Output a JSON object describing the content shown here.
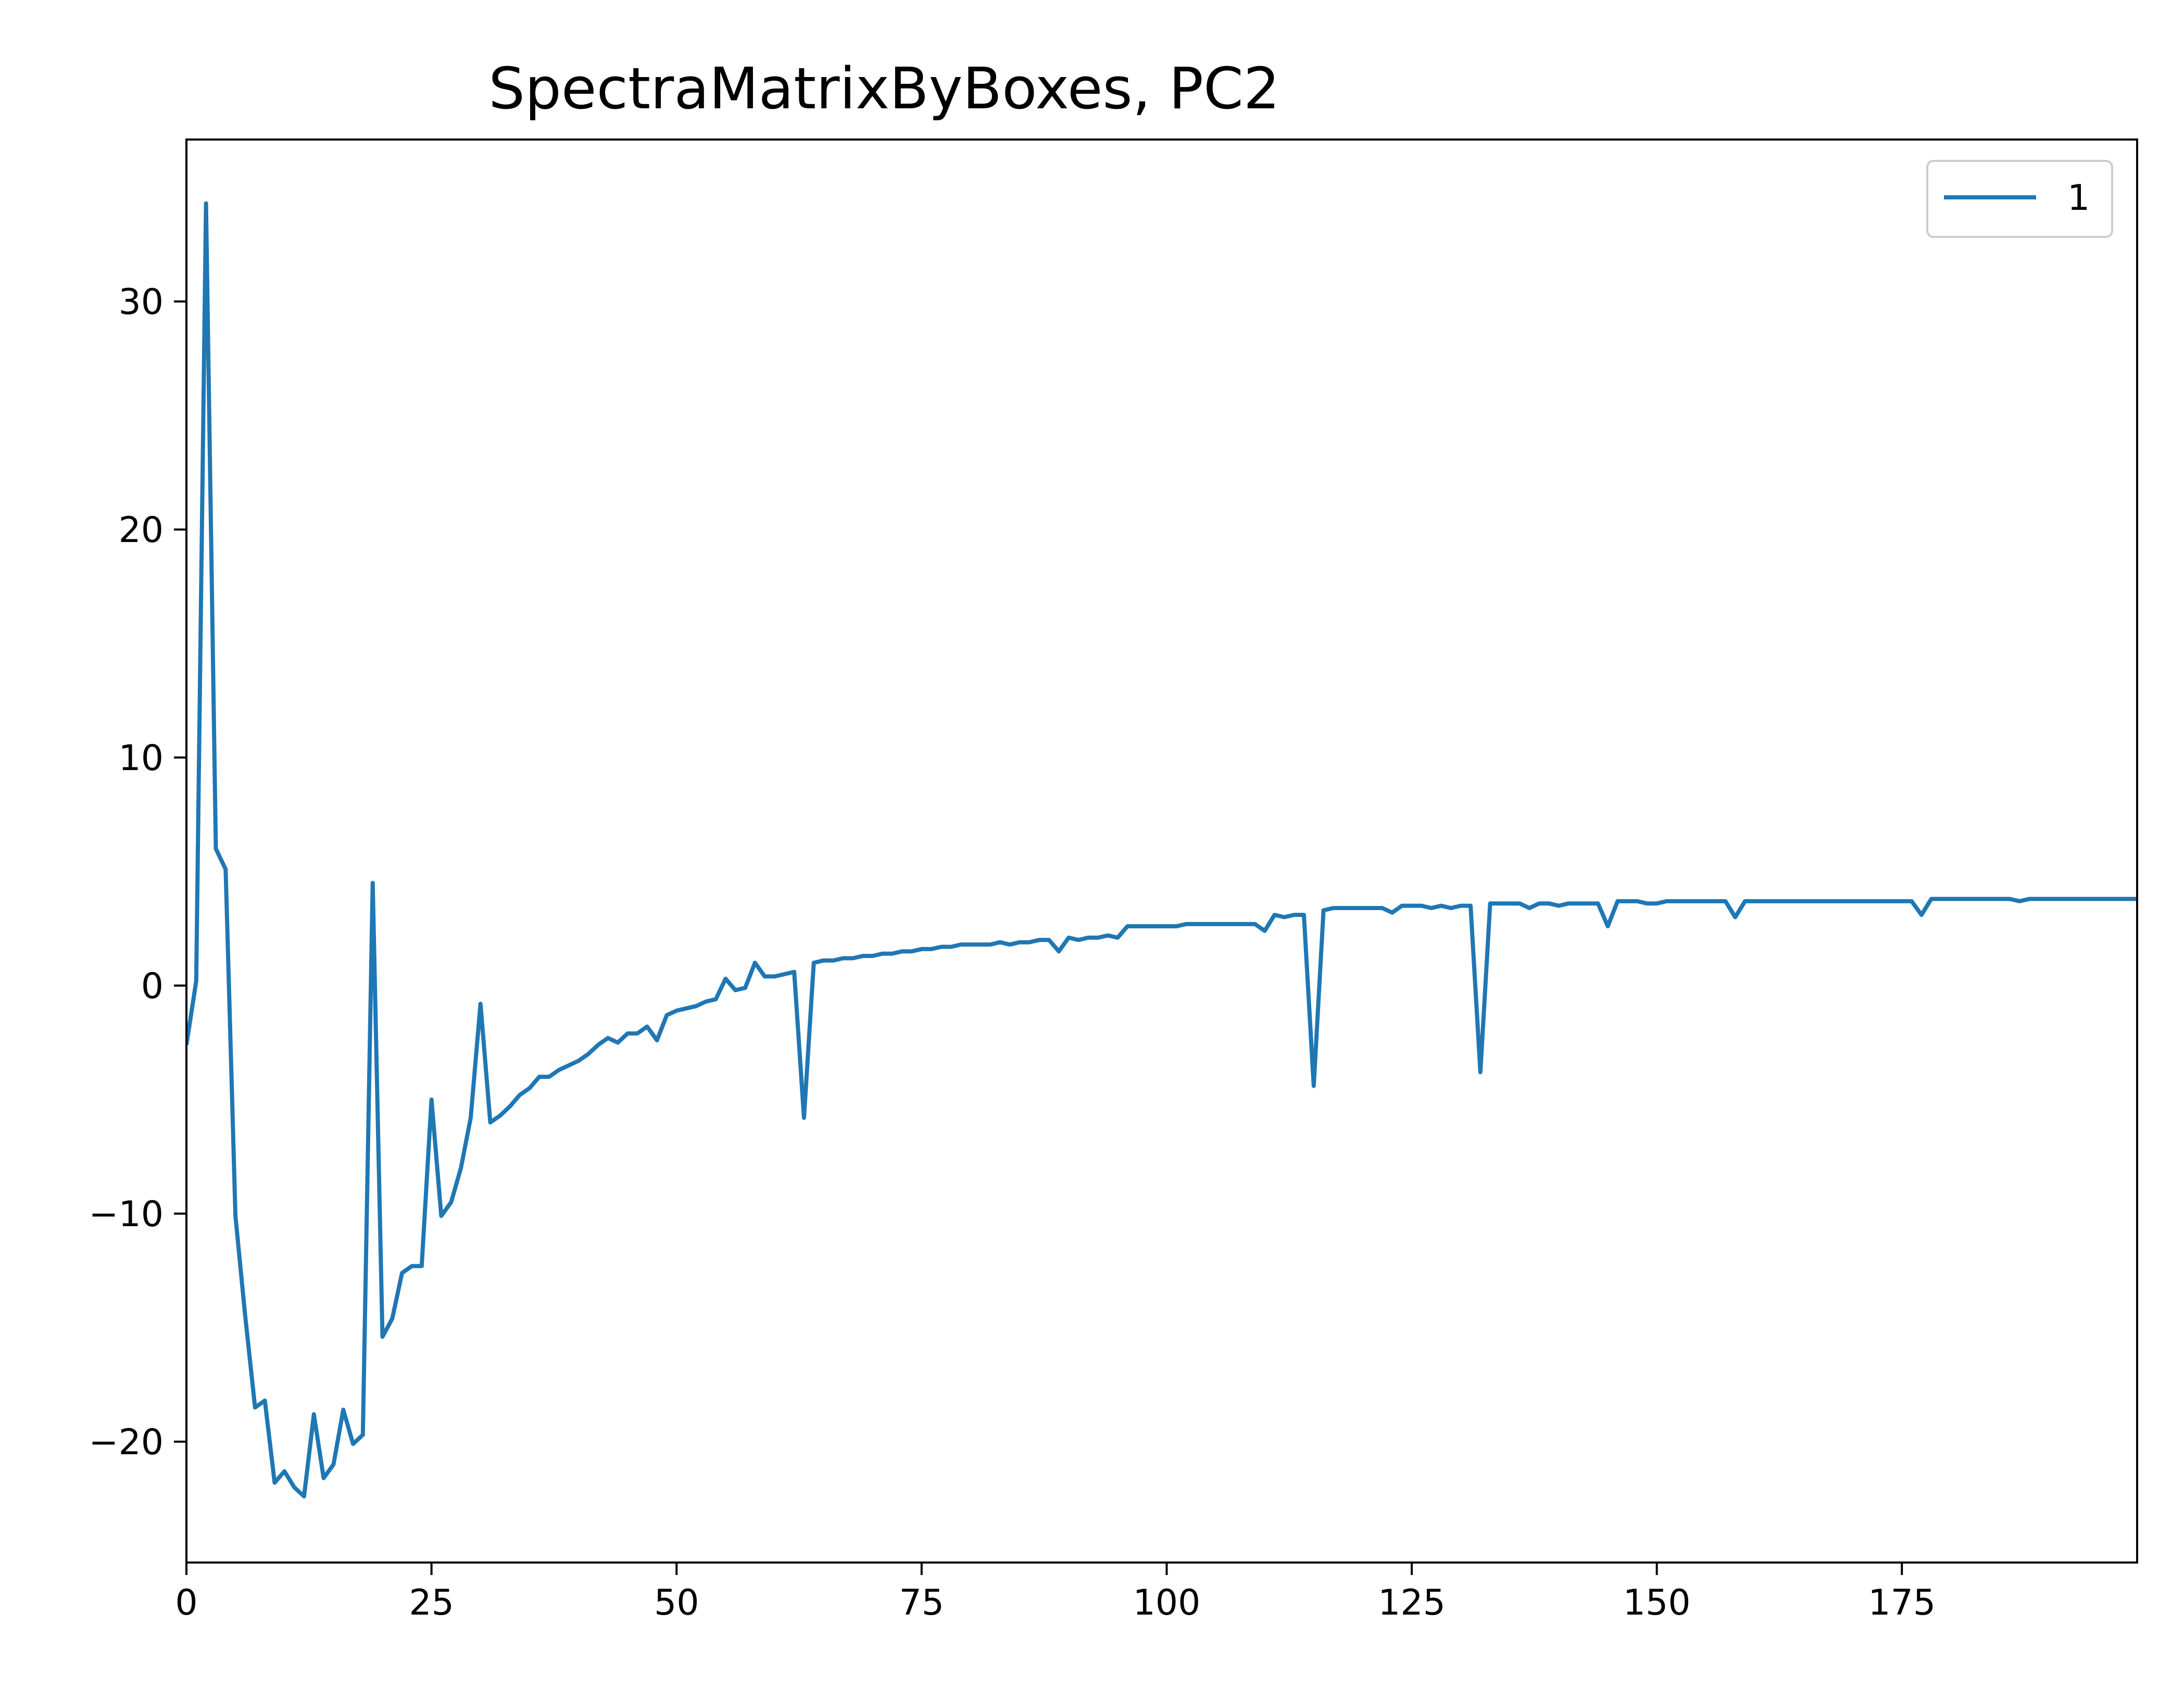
{
  "chart_data": {
    "type": "line",
    "title": "SpectraMatrixByBoxes, PC2",
    "xlabel": "",
    "ylabel": "",
    "xlim": [
      0,
      199
    ],
    "ylim": [
      -25.3,
      37.1
    ],
    "x_ticks": [
      0,
      25,
      50,
      75,
      100,
      125,
      150,
      175
    ],
    "x_tick_labels": [
      "0",
      "25",
      "50",
      "75",
      "100",
      "125",
      "150",
      "175"
    ],
    "y_ticks": [
      -20,
      -10,
      0,
      10,
      20,
      30
    ],
    "y_tick_labels": [
      "−20",
      "−10",
      "0",
      "10",
      "20",
      "30"
    ],
    "grid": false,
    "legend": {
      "position": "top-right",
      "entries": [
        "1"
      ]
    },
    "series": [
      {
        "name": "1",
        "color": "#1f77b4",
        "x_start": 0,
        "x_step": 1,
        "values": [
          -2.6,
          0.2,
          34.3,
          6.0,
          5.1,
          -10.1,
          -14.5,
          -18.5,
          -18.2,
          -21.8,
          -21.3,
          -22.0,
          -22.4,
          -18.8,
          -21.6,
          -21.0,
          -18.6,
          -20.1,
          -19.7,
          4.5,
          -15.4,
          -14.6,
          -12.6,
          -12.3,
          -12.3,
          -5.0,
          -10.1,
          -9.5,
          -8.0,
          -5.8,
          -0.8,
          -6.0,
          -5.7,
          -5.3,
          -4.8,
          -4.5,
          -4.0,
          -4.0,
          -3.7,
          -3.5,
          -3.3,
          -3.0,
          -2.6,
          -2.3,
          -2.5,
          -2.1,
          -2.1,
          -1.8,
          -2.4,
          -1.3,
          -1.1,
          -1.0,
          -0.9,
          -0.7,
          -0.6,
          0.3,
          -0.2,
          -0.1,
          1.0,
          0.4,
          0.4,
          0.5,
          0.6,
          -5.8,
          1.0,
          1.1,
          1.1,
          1.2,
          1.2,
          1.3,
          1.3,
          1.4,
          1.4,
          1.5,
          1.5,
          1.6,
          1.6,
          1.7,
          1.7,
          1.8,
          1.8,
          1.8,
          1.8,
          1.9,
          1.8,
          1.9,
          1.9,
          2.0,
          2.0,
          1.5,
          2.1,
          2.0,
          2.1,
          2.1,
          2.2,
          2.1,
          2.6,
          2.6,
          2.6,
          2.6,
          2.6,
          2.6,
          2.7,
          2.7,
          2.7,
          2.7,
          2.7,
          2.7,
          2.7,
          2.7,
          2.4,
          3.1,
          3.0,
          3.1,
          3.1,
          -4.4,
          3.3,
          3.4,
          3.4,
          3.4,
          3.4,
          3.4,
          3.4,
          3.2,
          3.5,
          3.5,
          3.5,
          3.4,
          3.5,
          3.4,
          3.5,
          3.5,
          -3.8,
          3.6,
          3.6,
          3.6,
          3.6,
          3.4,
          3.6,
          3.6,
          3.5,
          3.6,
          3.6,
          3.6,
          3.6,
          2.6,
          3.7,
          3.7,
          3.7,
          3.6,
          3.6,
          3.7,
          3.7,
          3.7,
          3.7,
          3.7,
          3.7,
          3.7,
          3.0,
          3.7,
          3.7,
          3.7,
          3.7,
          3.7,
          3.7,
          3.7,
          3.7,
          3.7,
          3.7,
          3.7,
          3.7,
          3.7,
          3.7,
          3.7,
          3.7,
          3.7,
          3.7,
          3.1,
          3.8,
          3.8,
          3.8,
          3.8,
          3.8,
          3.8,
          3.8,
          3.8,
          3.8,
          3.7,
          3.8,
          3.8,
          3.8,
          3.8,
          3.8,
          3.8,
          3.8,
          3.8,
          3.8,
          3.8,
          3.8,
          3.8
        ]
      }
    ]
  }
}
